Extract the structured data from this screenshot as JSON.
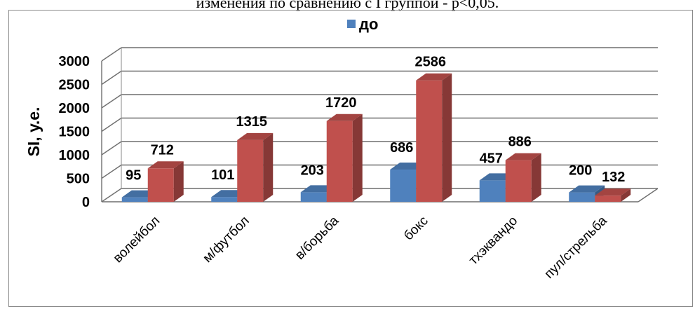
{
  "caption": "изменения по сравнению с I группой - р<0,05.",
  "chart_data": {
    "type": "bar",
    "categories": [
      "волейбол",
      "м/футбол",
      "в/борьба",
      "бокс",
      "тхэквандо",
      "пул/стрельба"
    ],
    "series": [
      {
        "name": "до",
        "values": [
          95,
          101,
          203,
          686,
          457,
          200
        ],
        "color": "#4f81bd"
      },
      {
        "name": "",
        "values": [
          712,
          1315,
          1720,
          2586,
          886,
          132
        ],
        "color": "#c0504d"
      }
    ],
    "ylabel": "SI, у.е.",
    "xlabel": "",
    "ylim": [
      0,
      3000
    ],
    "yticks": [
      0,
      500,
      1000,
      1500,
      2000,
      2500,
      3000
    ],
    "grid": true,
    "legend": "top",
    "style": "3d-column"
  }
}
